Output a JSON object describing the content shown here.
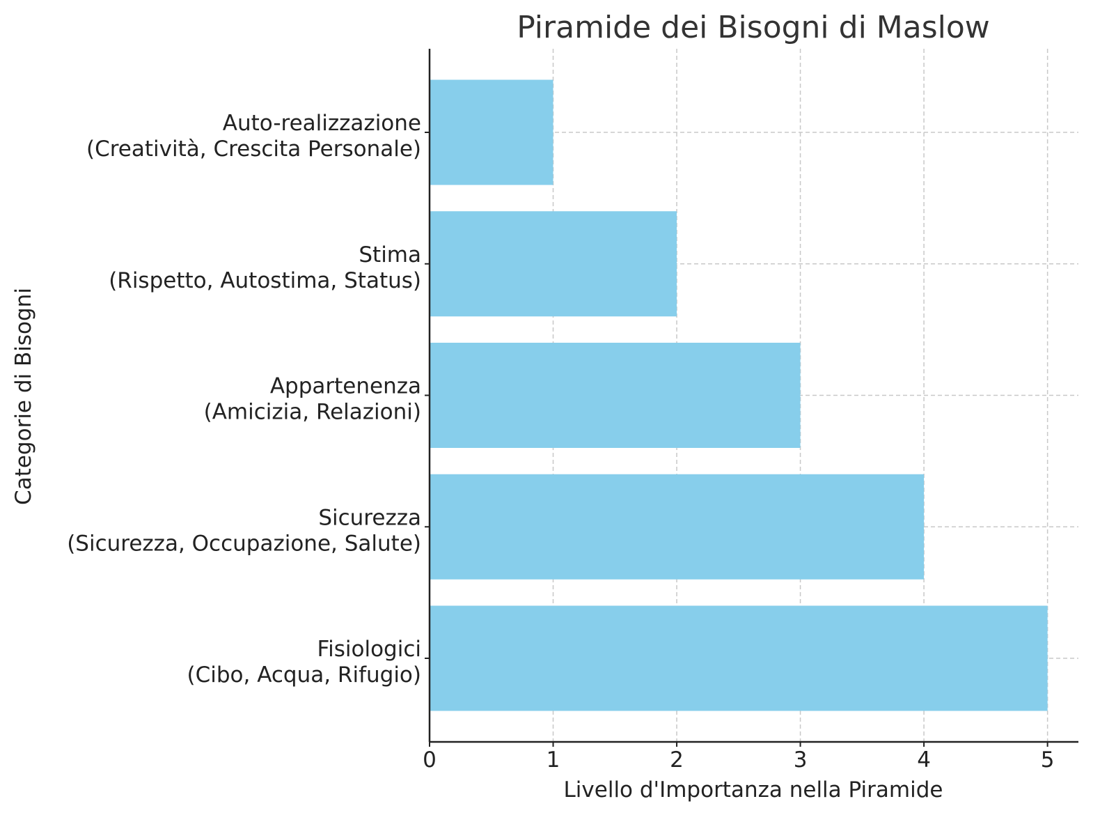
{
  "chart_data": {
    "type": "bar",
    "orientation": "horizontal",
    "title": "Piramide dei Bisogni di Maslow",
    "xlabel": "Livello d'Importanza nella Piramide",
    "ylabel": "Categorie di Bisogni",
    "categories": [
      [
        "Auto-realizzazione",
        "(Creatività, Crescita Personale)"
      ],
      [
        "Stima",
        "(Rispetto, Autostima, Status)"
      ],
      [
        "Appartenenza",
        "(Amicizia, Relazioni)"
      ],
      [
        "Sicurezza",
        "(Sicurezza, Occupazione, Salute)"
      ],
      [
        "Fisiologici",
        "(Cibo, Acqua, Rifugio)"
      ]
    ],
    "values": [
      1,
      2,
      3,
      4,
      5
    ],
    "xlim": [
      0,
      5.25
    ],
    "xticks": [
      0,
      1,
      2,
      3,
      4,
      5
    ],
    "grid": true,
    "bar_color": "#87CEEB"
  }
}
